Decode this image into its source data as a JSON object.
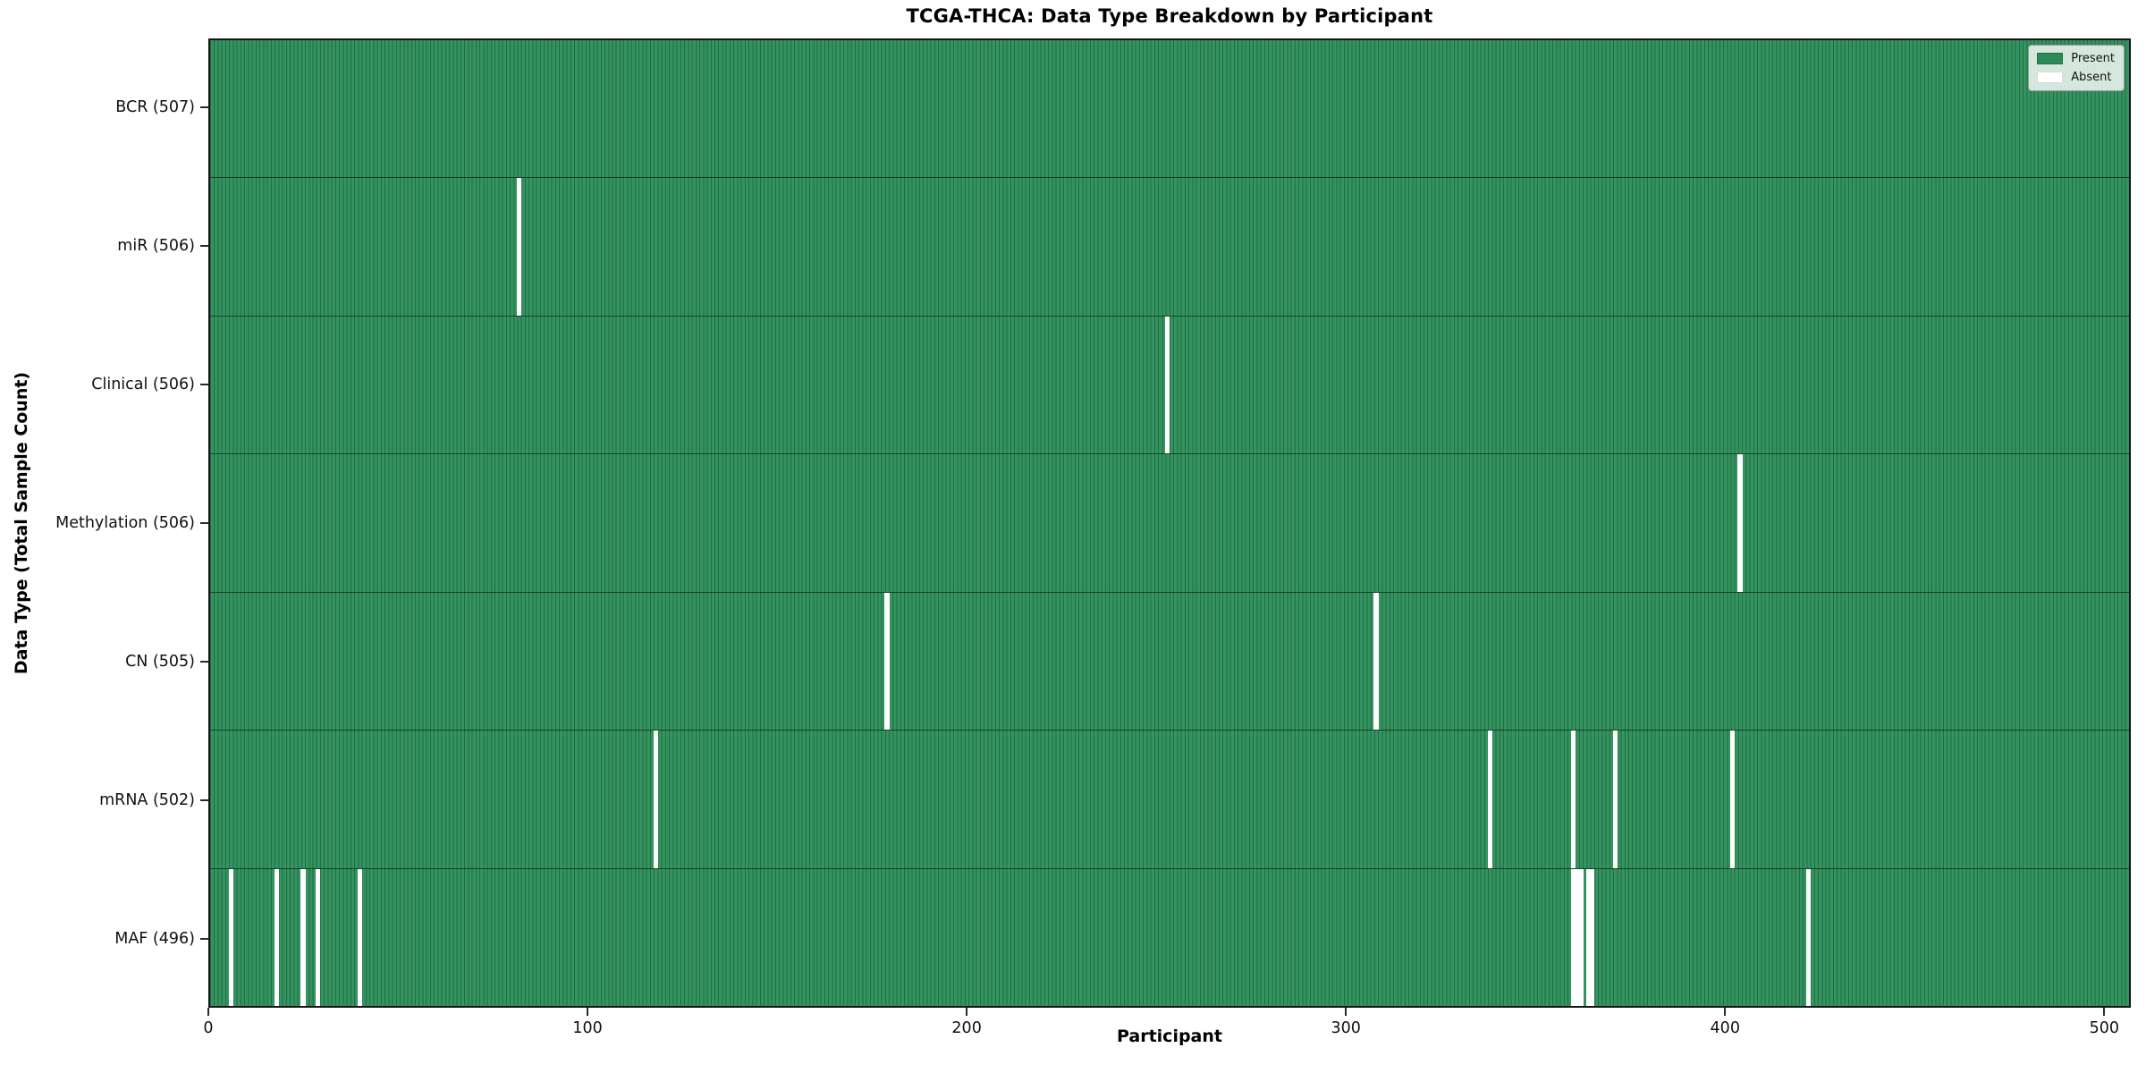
{
  "chart_data": {
    "type": "heatmap",
    "title": "TCGA-THCA: Data Type Breakdown by Participant",
    "xlabel": "Participant",
    "ylabel": "Data Type (Total Sample Count)",
    "x_range": [
      0,
      507
    ],
    "n_participants": 507,
    "x_ticks": [
      0,
      100,
      200,
      300,
      400,
      500
    ],
    "grid": false,
    "legend": {
      "position": "upper right",
      "entries": [
        {
          "label": "Present",
          "color": "#2e8b57"
        },
        {
          "label": "Absent",
          "color": "#ffffff"
        }
      ]
    },
    "rows": [
      {
        "label": "BCR (507)",
        "data_type": "BCR",
        "present_count": 507,
        "absent_participants": []
      },
      {
        "label": "miR (506)",
        "data_type": "miR",
        "present_count": 506,
        "absent_participants": [
          81
        ]
      },
      {
        "label": "Clinical (506)",
        "data_type": "Clinical",
        "present_count": 506,
        "absent_participants": [
          252
        ]
      },
      {
        "label": "Methylation (506)",
        "data_type": "Methylation",
        "present_count": 506,
        "absent_participants": [
          403
        ]
      },
      {
        "label": "CN (505)",
        "data_type": "CN",
        "present_count": 505,
        "absent_participants": [
          178,
          307
        ]
      },
      {
        "label": "mRNA (502)",
        "data_type": "mRNA",
        "present_count": 502,
        "absent_participants": [
          117,
          337,
          359,
          370,
          401
        ]
      },
      {
        "label": "MAF (496)",
        "data_type": "MAF",
        "present_count": 496,
        "absent_participants": [
          5,
          17,
          24,
          28,
          39,
          359,
          360,
          361,
          363,
          364,
          421
        ]
      }
    ],
    "colors": {
      "present_fill": "#35935f",
      "present_edge": "#1e6e45",
      "absent": "#ffffff",
      "row_divider": "#0f2417",
      "spine": "#151515"
    }
  }
}
